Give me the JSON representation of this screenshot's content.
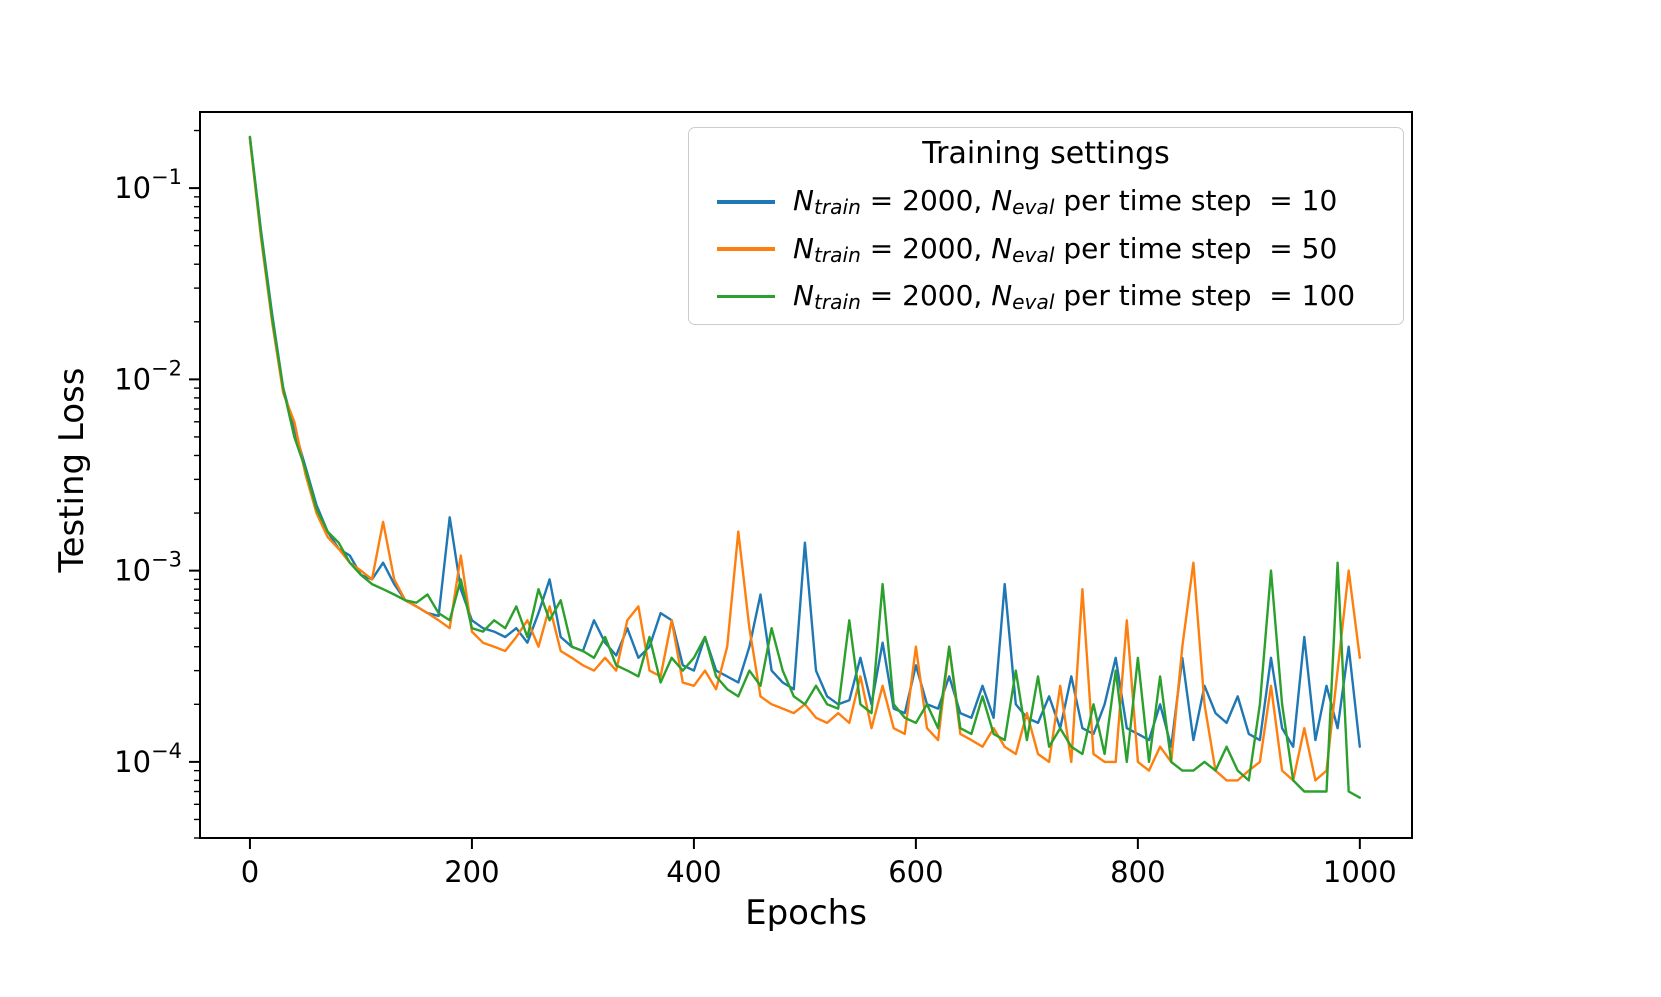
{
  "figure": {
    "background": "#ffffff"
  },
  "chart_data": {
    "type": "line",
    "title": "",
    "xlabel": "Epochs",
    "ylabel": "Testing Loss",
    "yscale": "log",
    "grid": false,
    "xlim": [
      -45,
      1047
    ],
    "ylim": [
      4e-05,
      0.25
    ],
    "x_ticks": [
      0,
      200,
      400,
      600,
      800,
      1000
    ],
    "y_tick_exponents": [
      -1,
      -2,
      -3,
      -4
    ],
    "legend": {
      "title": "Training settings",
      "position": "upper right",
      "entries": [
        {
          "color": "#1f77b4",
          "sym1": "N",
          "sub1": "train",
          "mid": " = 2000, ",
          "sym2": "N",
          "sub2": "eval",
          "tail": " per time step ",
          "val": " = 10"
        },
        {
          "color": "#ff7f0e",
          "sym1": "N",
          "sub1": "train",
          "mid": " = 2000, ",
          "sym2": "N",
          "sub2": "eval",
          "tail": " per time step ",
          "val": " = 50"
        },
        {
          "color": "#2ca02c",
          "sym1": "N",
          "sub1": "train",
          "mid": " = 2000, ",
          "sym2": "N",
          "sub2": "eval",
          "tail": " per time step ",
          "val": " = 100"
        }
      ]
    },
    "x": [
      0,
      10,
      20,
      30,
      40,
      50,
      60,
      70,
      80,
      90,
      100,
      110,
      120,
      130,
      140,
      150,
      160,
      170,
      180,
      190,
      200,
      210,
      220,
      230,
      240,
      250,
      260,
      270,
      280,
      290,
      300,
      310,
      320,
      330,
      340,
      350,
      360,
      370,
      380,
      390,
      400,
      410,
      420,
      430,
      440,
      450,
      460,
      470,
      480,
      490,
      500,
      510,
      520,
      530,
      540,
      550,
      560,
      570,
      580,
      590,
      600,
      610,
      620,
      630,
      640,
      650,
      660,
      670,
      680,
      690,
      700,
      710,
      720,
      730,
      740,
      750,
      760,
      770,
      780,
      790,
      800,
      810,
      820,
      830,
      840,
      850,
      860,
      870,
      880,
      890,
      900,
      910,
      920,
      930,
      940,
      950,
      960,
      970,
      980,
      990,
      1000
    ],
    "series": [
      {
        "name": "Ntrain = 2000, Neval per time step = 10",
        "color": "#1f77b4",
        "values": [
          0.185,
          0.06,
          0.022,
          0.009,
          0.0055,
          0.0035,
          0.0022,
          0.0016,
          0.0013,
          0.0012,
          0.00095,
          0.0009,
          0.0011,
          0.00085,
          0.0007,
          0.00065,
          0.0006,
          0.00058,
          0.0019,
          0.0008,
          0.00055,
          0.0005,
          0.00048,
          0.00045,
          0.0005,
          0.00042,
          0.0006,
          0.0009,
          0.00045,
          0.0004,
          0.00038,
          0.00055,
          0.00042,
          0.00036,
          0.0005,
          0.00035,
          0.0004,
          0.0006,
          0.00055,
          0.00032,
          0.0003,
          0.00045,
          0.0003,
          0.00028,
          0.00026,
          0.0004,
          0.00075,
          0.0003,
          0.00026,
          0.00024,
          0.0014,
          0.0003,
          0.00022,
          0.0002,
          0.00021,
          0.00035,
          0.0002,
          0.00042,
          0.00019,
          0.00018,
          0.00032,
          0.0002,
          0.00019,
          0.00028,
          0.00018,
          0.00017,
          0.00025,
          0.00017,
          0.00085,
          0.0002,
          0.00017,
          0.00016,
          0.00022,
          0.00015,
          0.00028,
          0.00015,
          0.00014,
          0.0002,
          0.00035,
          0.00015,
          0.00014,
          0.00013,
          0.0002,
          0.00012,
          0.00035,
          0.00013,
          0.00025,
          0.00018,
          0.00016,
          0.00022,
          0.00014,
          0.00013,
          0.00035,
          0.00015,
          0.00012,
          0.00045,
          0.00013,
          0.00025,
          0.00015,
          0.0004,
          0.00012
        ]
      },
      {
        "name": "Ntrain = 2000, Neval per time step = 50",
        "color": "#ff7f0e",
        "values": [
          0.18,
          0.055,
          0.02,
          0.0085,
          0.006,
          0.0032,
          0.002,
          0.0015,
          0.0013,
          0.0011,
          0.001,
          0.0009,
          0.0018,
          0.0009,
          0.0007,
          0.00065,
          0.0006,
          0.00055,
          0.0005,
          0.0012,
          0.00048,
          0.00042,
          0.0004,
          0.00038,
          0.00045,
          0.00055,
          0.0004,
          0.00065,
          0.00038,
          0.00035,
          0.00032,
          0.0003,
          0.00035,
          0.0003,
          0.00055,
          0.00065,
          0.0003,
          0.00028,
          0.00055,
          0.00026,
          0.00025,
          0.0003,
          0.00024,
          0.0004,
          0.0016,
          0.0005,
          0.00022,
          0.0002,
          0.00019,
          0.00018,
          0.0002,
          0.00017,
          0.00016,
          0.00018,
          0.00016,
          0.00028,
          0.00015,
          0.00025,
          0.00015,
          0.00014,
          0.0004,
          0.00015,
          0.00013,
          0.0004,
          0.00014,
          0.00013,
          0.00012,
          0.00015,
          0.00012,
          0.00011,
          0.00018,
          0.00011,
          0.0001,
          0.00025,
          0.0001,
          0.0008,
          0.00011,
          0.0001,
          0.0001,
          0.00055,
          0.0001,
          9e-05,
          0.00012,
          0.0001,
          0.0004,
          0.0011,
          0.0002,
          9e-05,
          8e-05,
          8e-05,
          9e-05,
          0.0001,
          0.00025,
          9e-05,
          8e-05,
          0.00015,
          8e-05,
          9e-05,
          0.0003,
          0.001,
          0.00035
        ]
      },
      {
        "name": "Ntrain = 2000, Neval per time step = 100",
        "color": "#2ca02c",
        "values": [
          0.185,
          0.058,
          0.021,
          0.009,
          0.005,
          0.0034,
          0.0021,
          0.0016,
          0.0014,
          0.0011,
          0.00095,
          0.00085,
          0.0008,
          0.00075,
          0.0007,
          0.00068,
          0.00075,
          0.0006,
          0.00055,
          0.0009,
          0.0005,
          0.00048,
          0.00055,
          0.0005,
          0.00065,
          0.00045,
          0.0008,
          0.00055,
          0.0007,
          0.0004,
          0.00038,
          0.00035,
          0.00045,
          0.00032,
          0.0003,
          0.00028,
          0.00045,
          0.00026,
          0.00035,
          0.0003,
          0.00035,
          0.00045,
          0.00028,
          0.00024,
          0.00022,
          0.0003,
          0.00025,
          0.0005,
          0.0003,
          0.00022,
          0.0002,
          0.00025,
          0.0002,
          0.00019,
          0.00055,
          0.0002,
          0.00018,
          0.00085,
          0.0002,
          0.00017,
          0.00016,
          0.0002,
          0.00015,
          0.0004,
          0.00015,
          0.00014,
          0.00022,
          0.00014,
          0.00013,
          0.0003,
          0.00013,
          0.00028,
          0.00012,
          0.00015,
          0.00012,
          0.00011,
          0.0002,
          0.00011,
          0.0003,
          0.0001,
          0.00035,
          0.0001,
          0.00028,
          0.0001,
          9e-05,
          9e-05,
          0.0001,
          9e-05,
          0.00012,
          9e-05,
          8e-05,
          0.0002,
          0.001,
          0.0002,
          8e-05,
          7e-05,
          7e-05,
          7e-05,
          0.0011,
          7e-05,
          6.5e-05
        ]
      }
    ]
  }
}
